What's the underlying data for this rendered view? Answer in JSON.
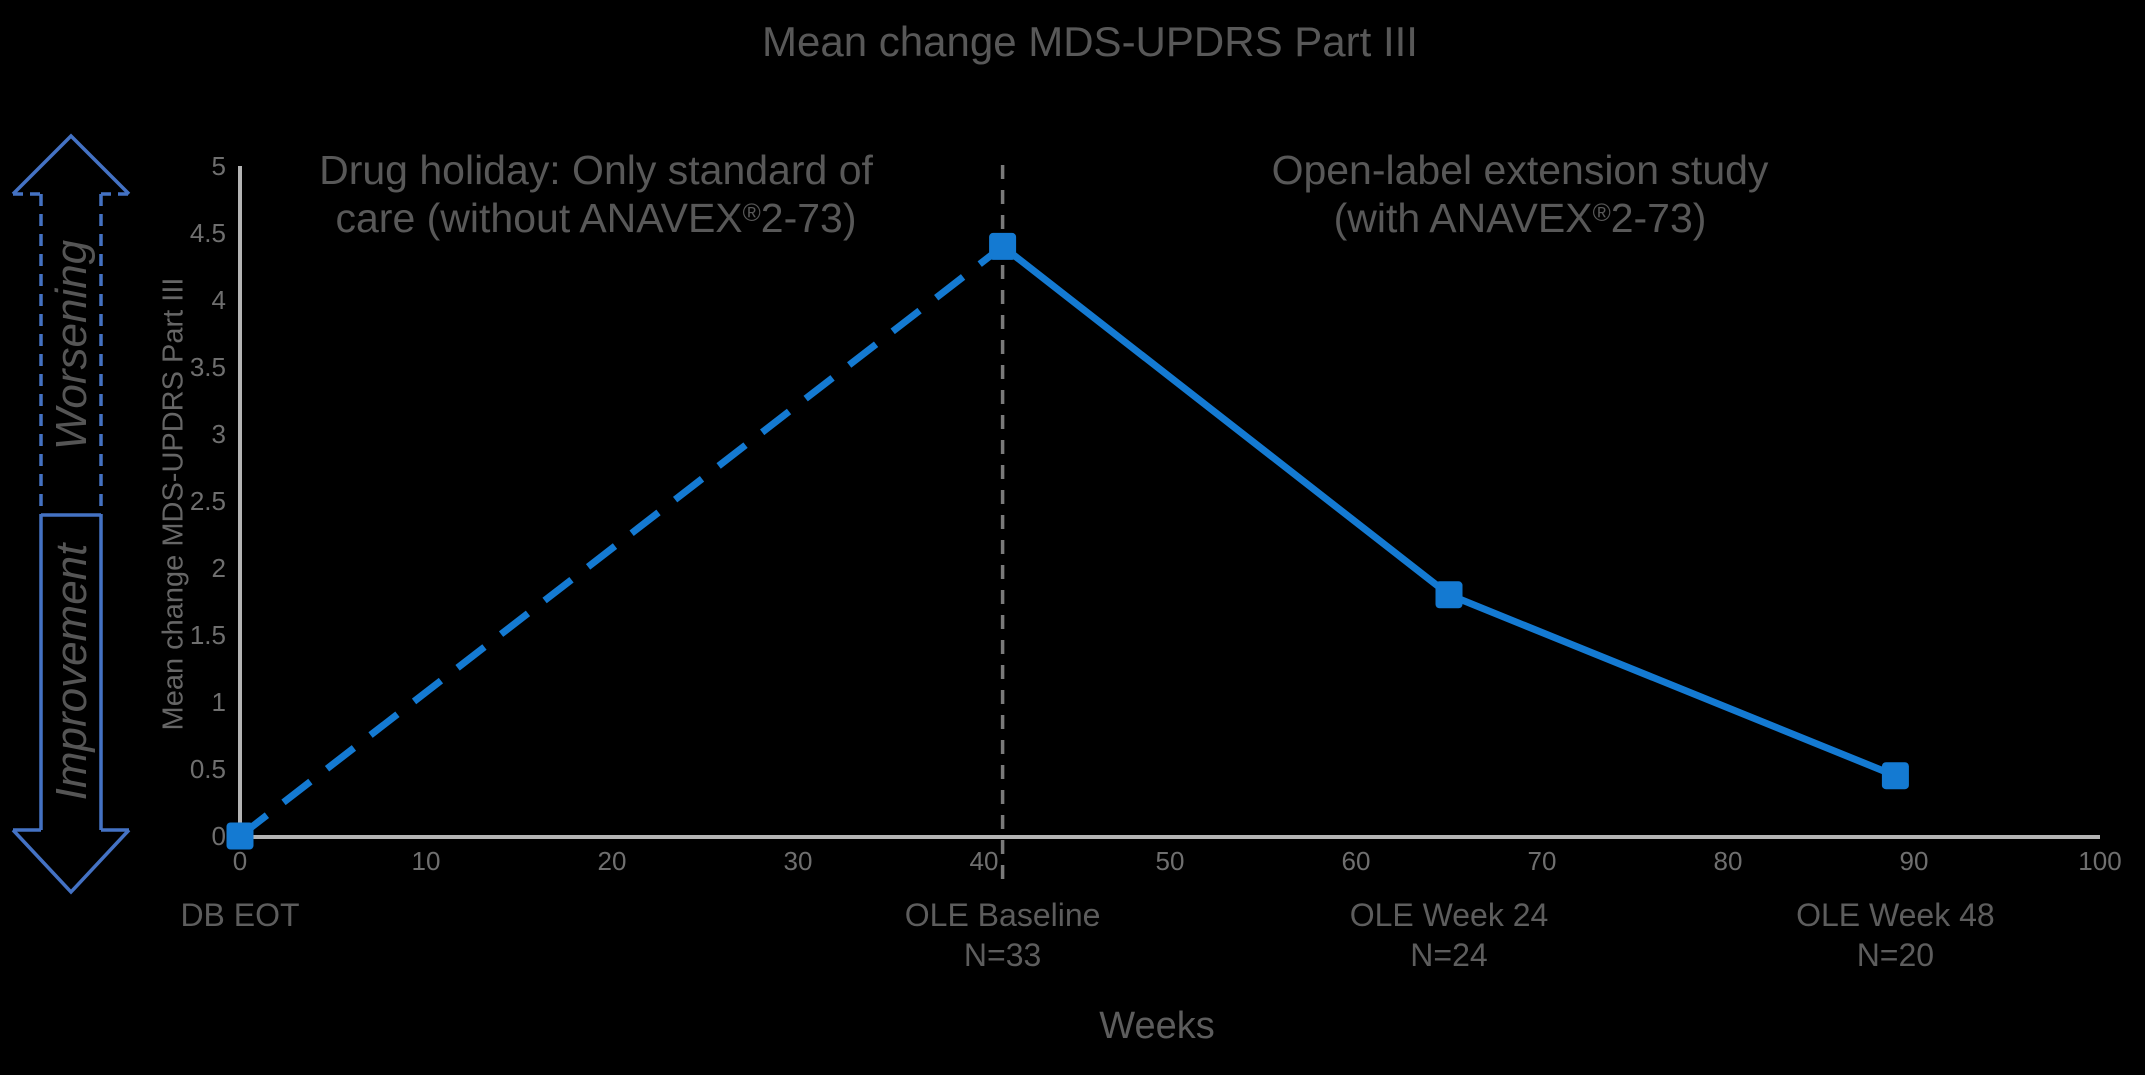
{
  "title": "Mean change MDS-UPDRS Part III",
  "annotations": {
    "left_line1": "Drug holiday: Only standard of",
    "left_line2": "care (without ANAVEX®2-73)",
    "right_line1": "Open-label extension study",
    "right_line2": "(with ANAVEX®2-73)"
  },
  "direction_labels": {
    "up": "Worsening",
    "down": "Improvement"
  },
  "chart_data": {
    "type": "line",
    "title": "Mean change MDS-UPDRS Part III",
    "xlabel": "Weeks",
    "ylabel": "Mean change MDS-UPDRS Part III",
    "xlim": [
      0,
      100
    ],
    "ylim": [
      0,
      5
    ],
    "x_ticks": [
      0,
      10,
      20,
      30,
      40,
      50,
      60,
      70,
      80,
      90,
      100
    ],
    "y_ticks": [
      0,
      0.5,
      1,
      1.5,
      2,
      2.5,
      3,
      3.5,
      4,
      4.5,
      5
    ],
    "grid": false,
    "legend": "none",
    "series": [
      {
        "name": "Drug holiday (without ANAVEX 2-73)",
        "style": "dashed",
        "points": [
          {
            "x": 0,
            "y": 0
          },
          {
            "x": 41,
            "y": 4.4
          }
        ]
      },
      {
        "name": "Open-label extension (with ANAVEX 2-73)",
        "style": "solid",
        "points": [
          {
            "x": 41,
            "y": 4.4
          },
          {
            "x": 65,
            "y": 1.8
          },
          {
            "x": 89,
            "y": 0.45
          }
        ]
      }
    ],
    "markers": [
      {
        "x": 0,
        "y": 0
      },
      {
        "x": 41,
        "y": 4.4
      },
      {
        "x": 65,
        "y": 1.8
      },
      {
        "x": 89,
        "y": 0.45
      }
    ],
    "vline_week": 41,
    "point_labels": [
      {
        "label": "DB EOT",
        "n": "",
        "week": 0
      },
      {
        "label": "OLE Baseline",
        "n": "N=33",
        "week": 41
      },
      {
        "label": "OLE Week 24",
        "n": "N=24",
        "week": 65
      },
      {
        "label": "OLE Week 48",
        "n": "N=20",
        "week": 89
      }
    ],
    "colors": {
      "line_blue": "#147AD2",
      "arrow_blue": "#4472C4",
      "axis_gray": "#B4B4B4",
      "vline_gray": "#7A7A7A",
      "title_text": "#585858",
      "label_text": "#5D5D5D",
      "tick_text": "#6F6F6F"
    }
  }
}
